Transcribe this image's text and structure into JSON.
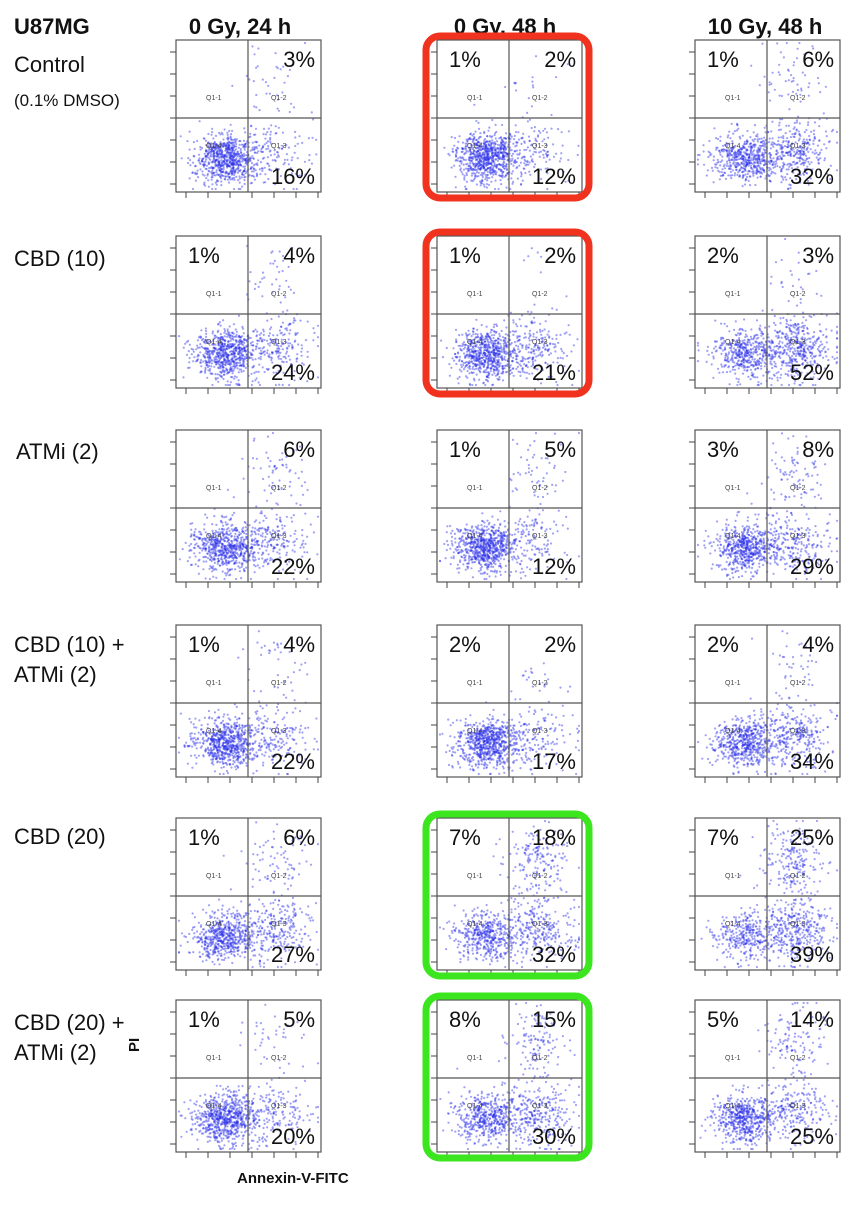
{
  "title": "U87MG",
  "axis": {
    "x_label": "Annexin-V-FITC",
    "y_label": "PI"
  },
  "columns": [
    "0 Gy, 24 h",
    "0 Gy, 48 h",
    "10 Gy, 48 h"
  ],
  "rows": [
    {
      "label_lines": [
        "Control",
        "(0.1% DMSO)"
      ]
    },
    {
      "label_lines": [
        "CBD (10)"
      ]
    },
    {
      "label_lines": [
        "ATMi (2)"
      ]
    },
    {
      "label_lines": [
        "CBD (10) +",
        "ATMi (2)"
      ]
    },
    {
      "label_lines": [
        "CBD (20)"
      ]
    },
    {
      "label_lines": [
        "CBD (20) +",
        "ATMi (2)"
      ]
    }
  ],
  "colors": {
    "dots": "#2a2ee8",
    "red_box": "#f0321e",
    "green_box": "#3ce61e"
  },
  "chart_data": {
    "type": "scatter",
    "quadrant_labels": [
      "Q1-1",
      "Q1-2",
      "Q1-3",
      "Q1-4"
    ],
    "panels": [
      {
        "row": 0,
        "col": 0,
        "ul": "",
        "ur": "3%",
        "lr": "16%",
        "highlight": ""
      },
      {
        "row": 0,
        "col": 1,
        "ul": "1%",
        "ur": "2%",
        "lr": "12%",
        "highlight": "red"
      },
      {
        "row": 0,
        "col": 2,
        "ul": "1%",
        "ur": "6%",
        "lr": "32%",
        "highlight": ""
      },
      {
        "row": 1,
        "col": 0,
        "ul": "1%",
        "ur": "4%",
        "lr": "24%",
        "highlight": ""
      },
      {
        "row": 1,
        "col": 1,
        "ul": "1%",
        "ur": "2%",
        "lr": "21%",
        "highlight": "red"
      },
      {
        "row": 1,
        "col": 2,
        "ul": "2%",
        "ur": "3%",
        "lr": "52%",
        "highlight": ""
      },
      {
        "row": 2,
        "col": 0,
        "ul": "",
        "ur": "6%",
        "lr": "22%",
        "highlight": ""
      },
      {
        "row": 2,
        "col": 1,
        "ul": "1%",
        "ur": "5%",
        "lr": "12%",
        "highlight": ""
      },
      {
        "row": 2,
        "col": 2,
        "ul": "3%",
        "ur": "8%",
        "lr": "29%",
        "highlight": ""
      },
      {
        "row": 3,
        "col": 0,
        "ul": "1%",
        "ur": "4%",
        "lr": "22%",
        "highlight": ""
      },
      {
        "row": 3,
        "col": 1,
        "ul": "2%",
        "ur": "2%",
        "lr": "17%",
        "highlight": ""
      },
      {
        "row": 3,
        "col": 2,
        "ul": "2%",
        "ur": "4%",
        "lr": "34%",
        "highlight": ""
      },
      {
        "row": 4,
        "col": 0,
        "ul": "1%",
        "ur": "6%",
        "lr": "27%",
        "highlight": ""
      },
      {
        "row": 4,
        "col": 1,
        "ul": "7%",
        "ur": "18%",
        "lr": "32%",
        "highlight": "green"
      },
      {
        "row": 4,
        "col": 2,
        "ul": "7%",
        "ur": "25%",
        "lr": "39%",
        "highlight": ""
      },
      {
        "row": 5,
        "col": 0,
        "ul": "1%",
        "ur": "5%",
        "lr": "20%",
        "highlight": ""
      },
      {
        "row": 5,
        "col": 1,
        "ul": "8%",
        "ur": "15%",
        "lr": "30%",
        "highlight": "green"
      },
      {
        "row": 5,
        "col": 2,
        "ul": "5%",
        "ur": "14%",
        "lr": "25%",
        "highlight": ""
      }
    ]
  }
}
